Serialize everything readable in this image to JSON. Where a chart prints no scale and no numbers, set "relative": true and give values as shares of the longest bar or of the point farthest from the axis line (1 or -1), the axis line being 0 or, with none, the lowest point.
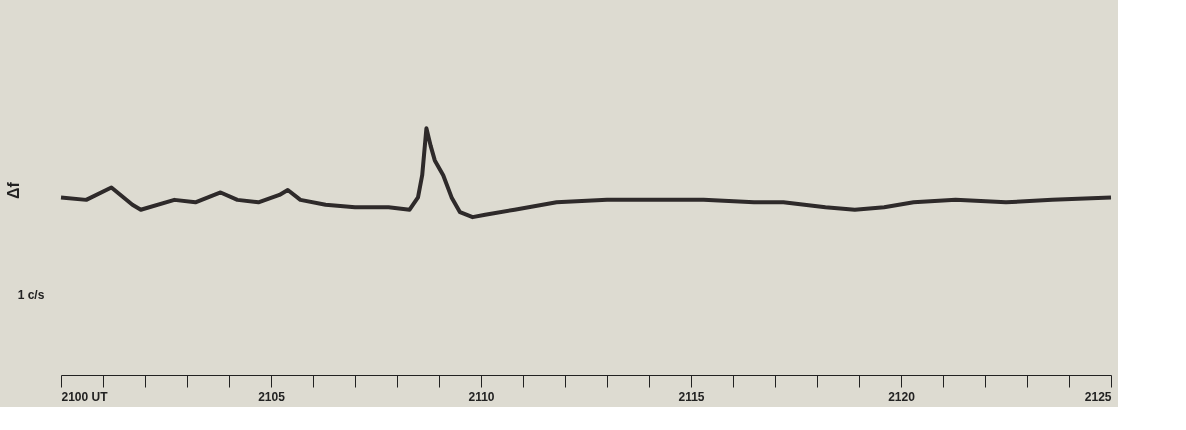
{
  "chart_data": {
    "type": "line",
    "relative": true,
    "ylabel": "Δf",
    "annotations": [
      "1 c/s"
    ],
    "x": [
      2100,
      2100.6,
      2101.2,
      2101.7,
      2101.9,
      2102.7,
      2103.2,
      2103.5,
      2103.8,
      2104.2,
      2104.7,
      2105.2,
      2105.4,
      2105.7,
      2106.3,
      2107.0,
      2107.8,
      2108.3,
      2108.5,
      2108.6,
      2108.7,
      2108.8,
      2108.9,
      2109.1,
      2109.3,
      2109.5,
      2109.8,
      2110.1,
      2110.8,
      2111.8,
      2113.0,
      2114.2,
      2115.3,
      2116.5,
      2117.2,
      2118.2,
      2118.9,
      2119.6,
      2120.3,
      2121.3,
      2122.5,
      2123.6,
      2125
    ],
    "series": [
      {
        "color": "#2e2a2a",
        "values": [
          0.72,
          0.71,
          0.76,
          0.69,
          0.67,
          0.71,
          0.7,
          0.72,
          0.74,
          0.71,
          0.7,
          0.73,
          0.75,
          0.71,
          0.69,
          0.68,
          0.68,
          0.67,
          0.72,
          0.81,
          1.0,
          0.93,
          0.87,
          0.81,
          0.72,
          0.66,
          0.64,
          0.65,
          0.67,
          0.7,
          0.71,
          0.71,
          0.71,
          0.7,
          0.7,
          0.68,
          0.67,
          0.68,
          0.7,
          0.71,
          0.7,
          0.71,
          0.72
        ]
      }
    ],
    "xlim": [
      2100,
      2125
    ],
    "xticks": [
      {
        "value": 2100,
        "label": "2100 UT"
      },
      {
        "value": 2101,
        "label": null
      },
      {
        "value": 2102,
        "label": null
      },
      {
        "value": 2103,
        "label": null
      },
      {
        "value": 2104,
        "label": null
      },
      2105,
      {
        "value": 2106,
        "label": null
      },
      {
        "value": 2107,
        "label": null
      },
      {
        "value": 2108,
        "label": null
      },
      {
        "value": 2109,
        "label": null
      },
      2110,
      {
        "value": 2111,
        "label": null
      },
      {
        "value": 2112,
        "label": null
      },
      {
        "value": 2113,
        "label": null
      },
      {
        "value": 2114,
        "label": null
      },
      2115,
      {
        "value": 2116,
        "label": null
      },
      {
        "value": 2117,
        "label": null
      },
      {
        "value": 2118,
        "label": null
      },
      {
        "value": 2119,
        "label": null
      },
      2120,
      {
        "value": 2121,
        "label": null
      },
      {
        "value": 2122,
        "label": null
      },
      {
        "value": 2123,
        "label": null
      },
      {
        "value": 2124,
        "label": null
      },
      2125
    ],
    "grid": false,
    "marker": "none",
    "line_style": "solid"
  }
}
